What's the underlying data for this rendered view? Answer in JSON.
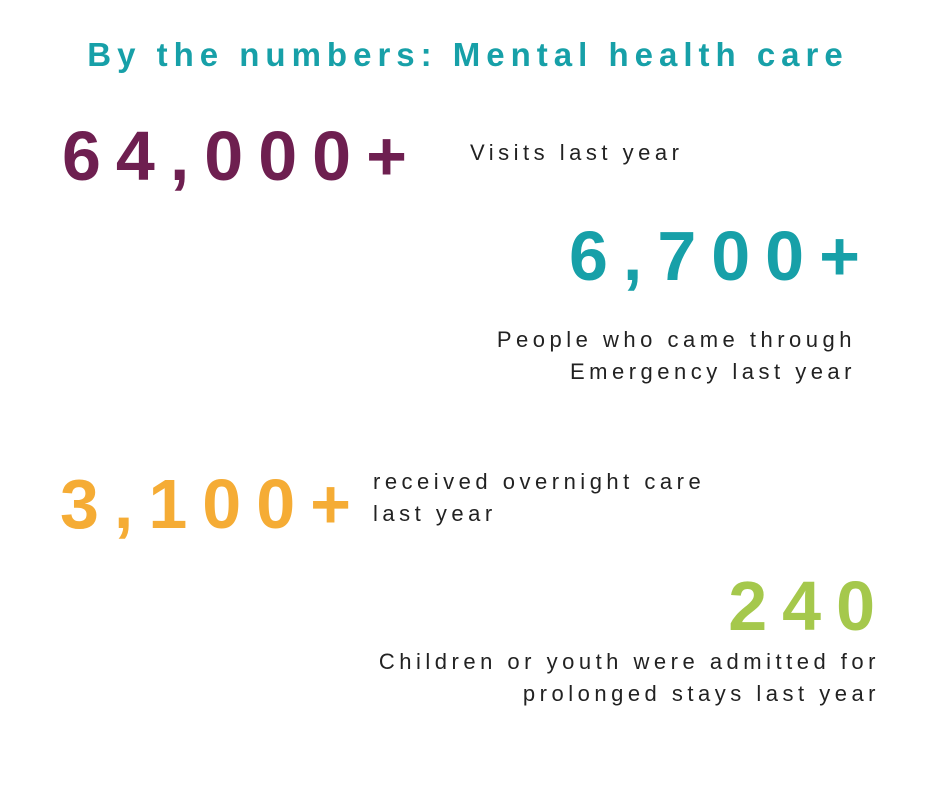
{
  "title": "By the numbers: Mental health care",
  "stats": [
    {
      "number": "64,000+",
      "color": "#6e1f50",
      "description": [
        "Visits last year"
      ]
    },
    {
      "number": "6,700+",
      "color": "#17a0a8",
      "description": [
        "People who came through",
        "Emergency last year"
      ]
    },
    {
      "number": "3,100+",
      "color": "#f5ac35",
      "description": [
        "received overnight care",
        "last year"
      ]
    },
    {
      "number": "240",
      "color": "#a5c84c",
      "description": [
        "Children or youth were admitted for",
        "prolonged stays last year"
      ]
    }
  ]
}
